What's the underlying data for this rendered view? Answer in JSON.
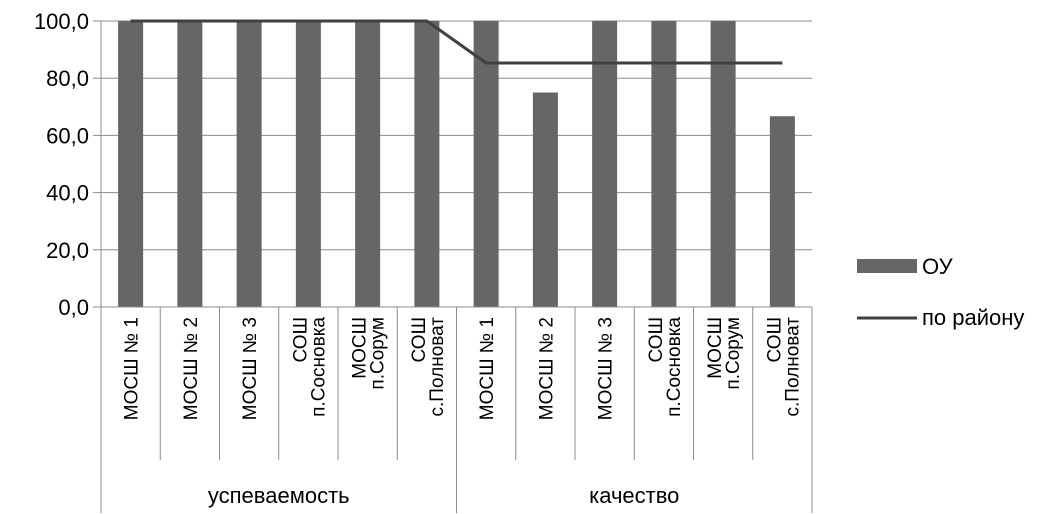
{
  "chart_data": {
    "type": "bar",
    "title": "",
    "xlabel": "",
    "ylabel": "",
    "ylim": [
      0,
      100
    ],
    "yticks": [
      "0,0",
      "20,0",
      "40,0",
      "60,0",
      "80,0",
      "100,0"
    ],
    "ytick_values": [
      0,
      20,
      40,
      60,
      80,
      100
    ],
    "grid": true,
    "legend_position": "right",
    "groups": [
      {
        "label": "успеваемость",
        "categories": [
          [
            "МОСШ № 1"
          ],
          [
            "МОСШ № 2"
          ],
          [
            "МОСШ № 3"
          ],
          [
            "СОШ",
            "п.Сосновка"
          ],
          [
            "МОСШ",
            "п.Сорум"
          ],
          [
            "СОШ",
            "с.Полноват"
          ]
        ]
      },
      {
        "label": "качество",
        "categories": [
          [
            "МОСШ № 1"
          ],
          [
            "МОСШ № 2"
          ],
          [
            "МОСШ № 3"
          ],
          [
            "СОШ",
            "п.Сосновка"
          ],
          [
            "МОСШ",
            "п.Сорум"
          ],
          [
            "СОШ",
            "с.Полноват"
          ]
        ]
      }
    ],
    "series": [
      {
        "name": "ОУ",
        "kind": "bar",
        "color": "#666666",
        "values": [
          100,
          100,
          100,
          100,
          100,
          100,
          100,
          75,
          100,
          100,
          100,
          66.7
        ]
      },
      {
        "name": "по району",
        "kind": "line",
        "color": "#404040",
        "values": [
          100,
          100,
          100,
          100,
          100,
          100,
          85.3,
          85.3,
          85.3,
          85.3,
          85.3,
          85.3
        ]
      }
    ]
  }
}
